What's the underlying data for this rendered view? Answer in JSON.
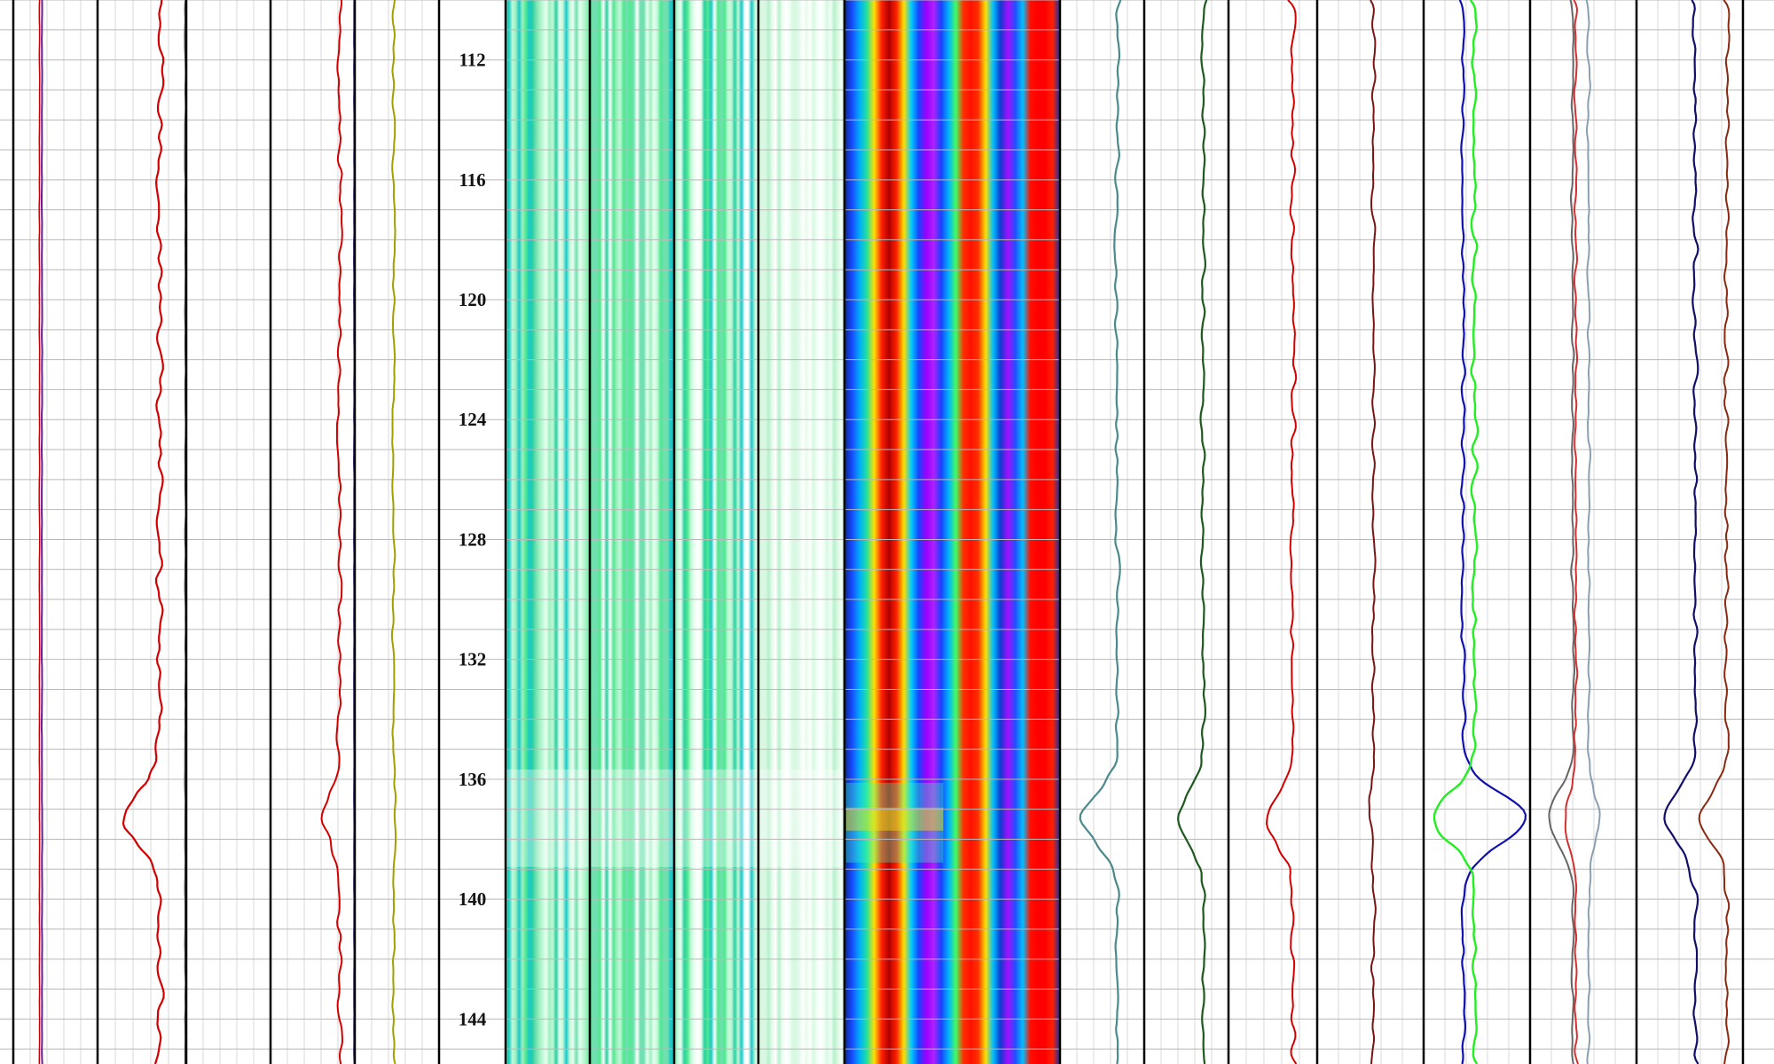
{
  "chart_data": {
    "type": "line",
    "title": "",
    "ylabel": "",
    "depth_range": [
      110,
      145.5
    ],
    "depth_ticks": [
      112,
      116,
      120,
      124,
      128,
      132,
      136,
      140,
      144
    ],
    "depth_tick_labels": [
      "112",
      "116",
      "120",
      "124",
      "128",
      "132",
      "136",
      "140",
      "144"
    ],
    "grid": true,
    "event_depth": 137.3,
    "tracks": [
      {
        "id": "t1",
        "kind": "curve",
        "series": [
          {
            "color": "#6a1b9a",
            "base": 0.34,
            "wiggle": 0.004,
            "anomaly": 0.0,
            "width": 2
          },
          {
            "color": "#cc0000",
            "base": 0.31,
            "wiggle": 0.003,
            "anomaly": 0.0,
            "width": 1.5
          }
        ]
      },
      {
        "id": "t2",
        "kind": "curve",
        "series": [
          {
            "color": "#d40000",
            "base": 0.7,
            "wiggle": 0.05,
            "anomaly": -0.42,
            "width": 2.2
          },
          {
            "color": "#555555",
            "base": 0.99,
            "wiggle": 0.006,
            "anomaly": 0.0,
            "width": 2
          }
        ]
      },
      {
        "id": "t3",
        "kind": "blank",
        "series": []
      },
      {
        "id": "t4",
        "kind": "curve",
        "series": [
          {
            "color": "#d40000",
            "base": 0.82,
            "wiggle": 0.035,
            "anomaly": -0.2,
            "width": 2
          },
          {
            "color": "#3a2a8a",
            "base": 0.99,
            "wiggle": 0.004,
            "anomaly": 0.0,
            "width": 1.5
          }
        ]
      },
      {
        "id": "t5",
        "kind": "curve",
        "series": [
          {
            "color": "#a0a000",
            "base": 0.46,
            "wiggle": 0.02,
            "anomaly": 0.02,
            "width": 2
          }
        ]
      },
      {
        "id": "t6",
        "kind": "depth",
        "series": []
      },
      {
        "id": "t7",
        "kind": "image",
        "palette": "green",
        "series": []
      },
      {
        "id": "t8",
        "kind": "image",
        "palette": "green",
        "series": []
      },
      {
        "id": "t9",
        "kind": "image",
        "palette": "green",
        "series": []
      },
      {
        "id": "t10",
        "kind": "image",
        "palette": "green-light",
        "series": []
      },
      {
        "id": "t11",
        "kind": "image",
        "palette": "spectrum",
        "series": []
      },
      {
        "id": "t12",
        "kind": "curve",
        "series": [
          {
            "color": "#4a8a8a",
            "base": 0.68,
            "wiggle": 0.04,
            "anomaly": -0.42,
            "width": 2.2
          }
        ]
      },
      {
        "id": "t13",
        "kind": "curve",
        "series": [
          {
            "color": "#1e5a1e",
            "base": 0.7,
            "wiggle": 0.04,
            "anomaly": -0.3,
            "width": 2.2
          }
        ]
      },
      {
        "id": "t14",
        "kind": "curve",
        "series": [
          {
            "color": "#d40000",
            "base": 0.72,
            "wiggle": 0.05,
            "anomaly": -0.28,
            "width": 2
          }
        ]
      },
      {
        "id": "t15",
        "kind": "curve",
        "series": [
          {
            "color": "#7a1515",
            "base": 0.53,
            "wiggle": 0.03,
            "anomaly": -0.04,
            "width": 2
          }
        ]
      },
      {
        "id": "t16",
        "kind": "curve",
        "series": [
          {
            "color": "#1010b0",
            "base": 0.37,
            "wiggle": 0.03,
            "anomaly": 0.58,
            "width": 2.2
          },
          {
            "color": "#22ee22",
            "base": 0.48,
            "wiggle": 0.04,
            "anomaly": -0.4,
            "width": 2.4
          }
        ]
      },
      {
        "id": "t17",
        "kind": "curve",
        "series": [
          {
            "color": "#666666",
            "base": 0.4,
            "wiggle": 0.02,
            "anomaly": -0.22,
            "width": 2
          },
          {
            "color": "#d43030",
            "base": 0.43,
            "wiggle": 0.02,
            "anomaly": -0.1,
            "width": 2
          },
          {
            "color": "#8aa0b0",
            "base": 0.55,
            "wiggle": 0.02,
            "anomaly": 0.1,
            "width": 2
          }
        ]
      },
      {
        "id": "t18",
        "kind": "curve",
        "series": [
          {
            "color": "#10106a",
            "base": 0.55,
            "wiggle": 0.03,
            "anomaly": -0.3,
            "width": 2.2
          },
          {
            "color": "#8a2a10",
            "base": 0.85,
            "wiggle": 0.03,
            "anomaly": -0.25,
            "width": 2
          }
        ]
      }
    ]
  }
}
